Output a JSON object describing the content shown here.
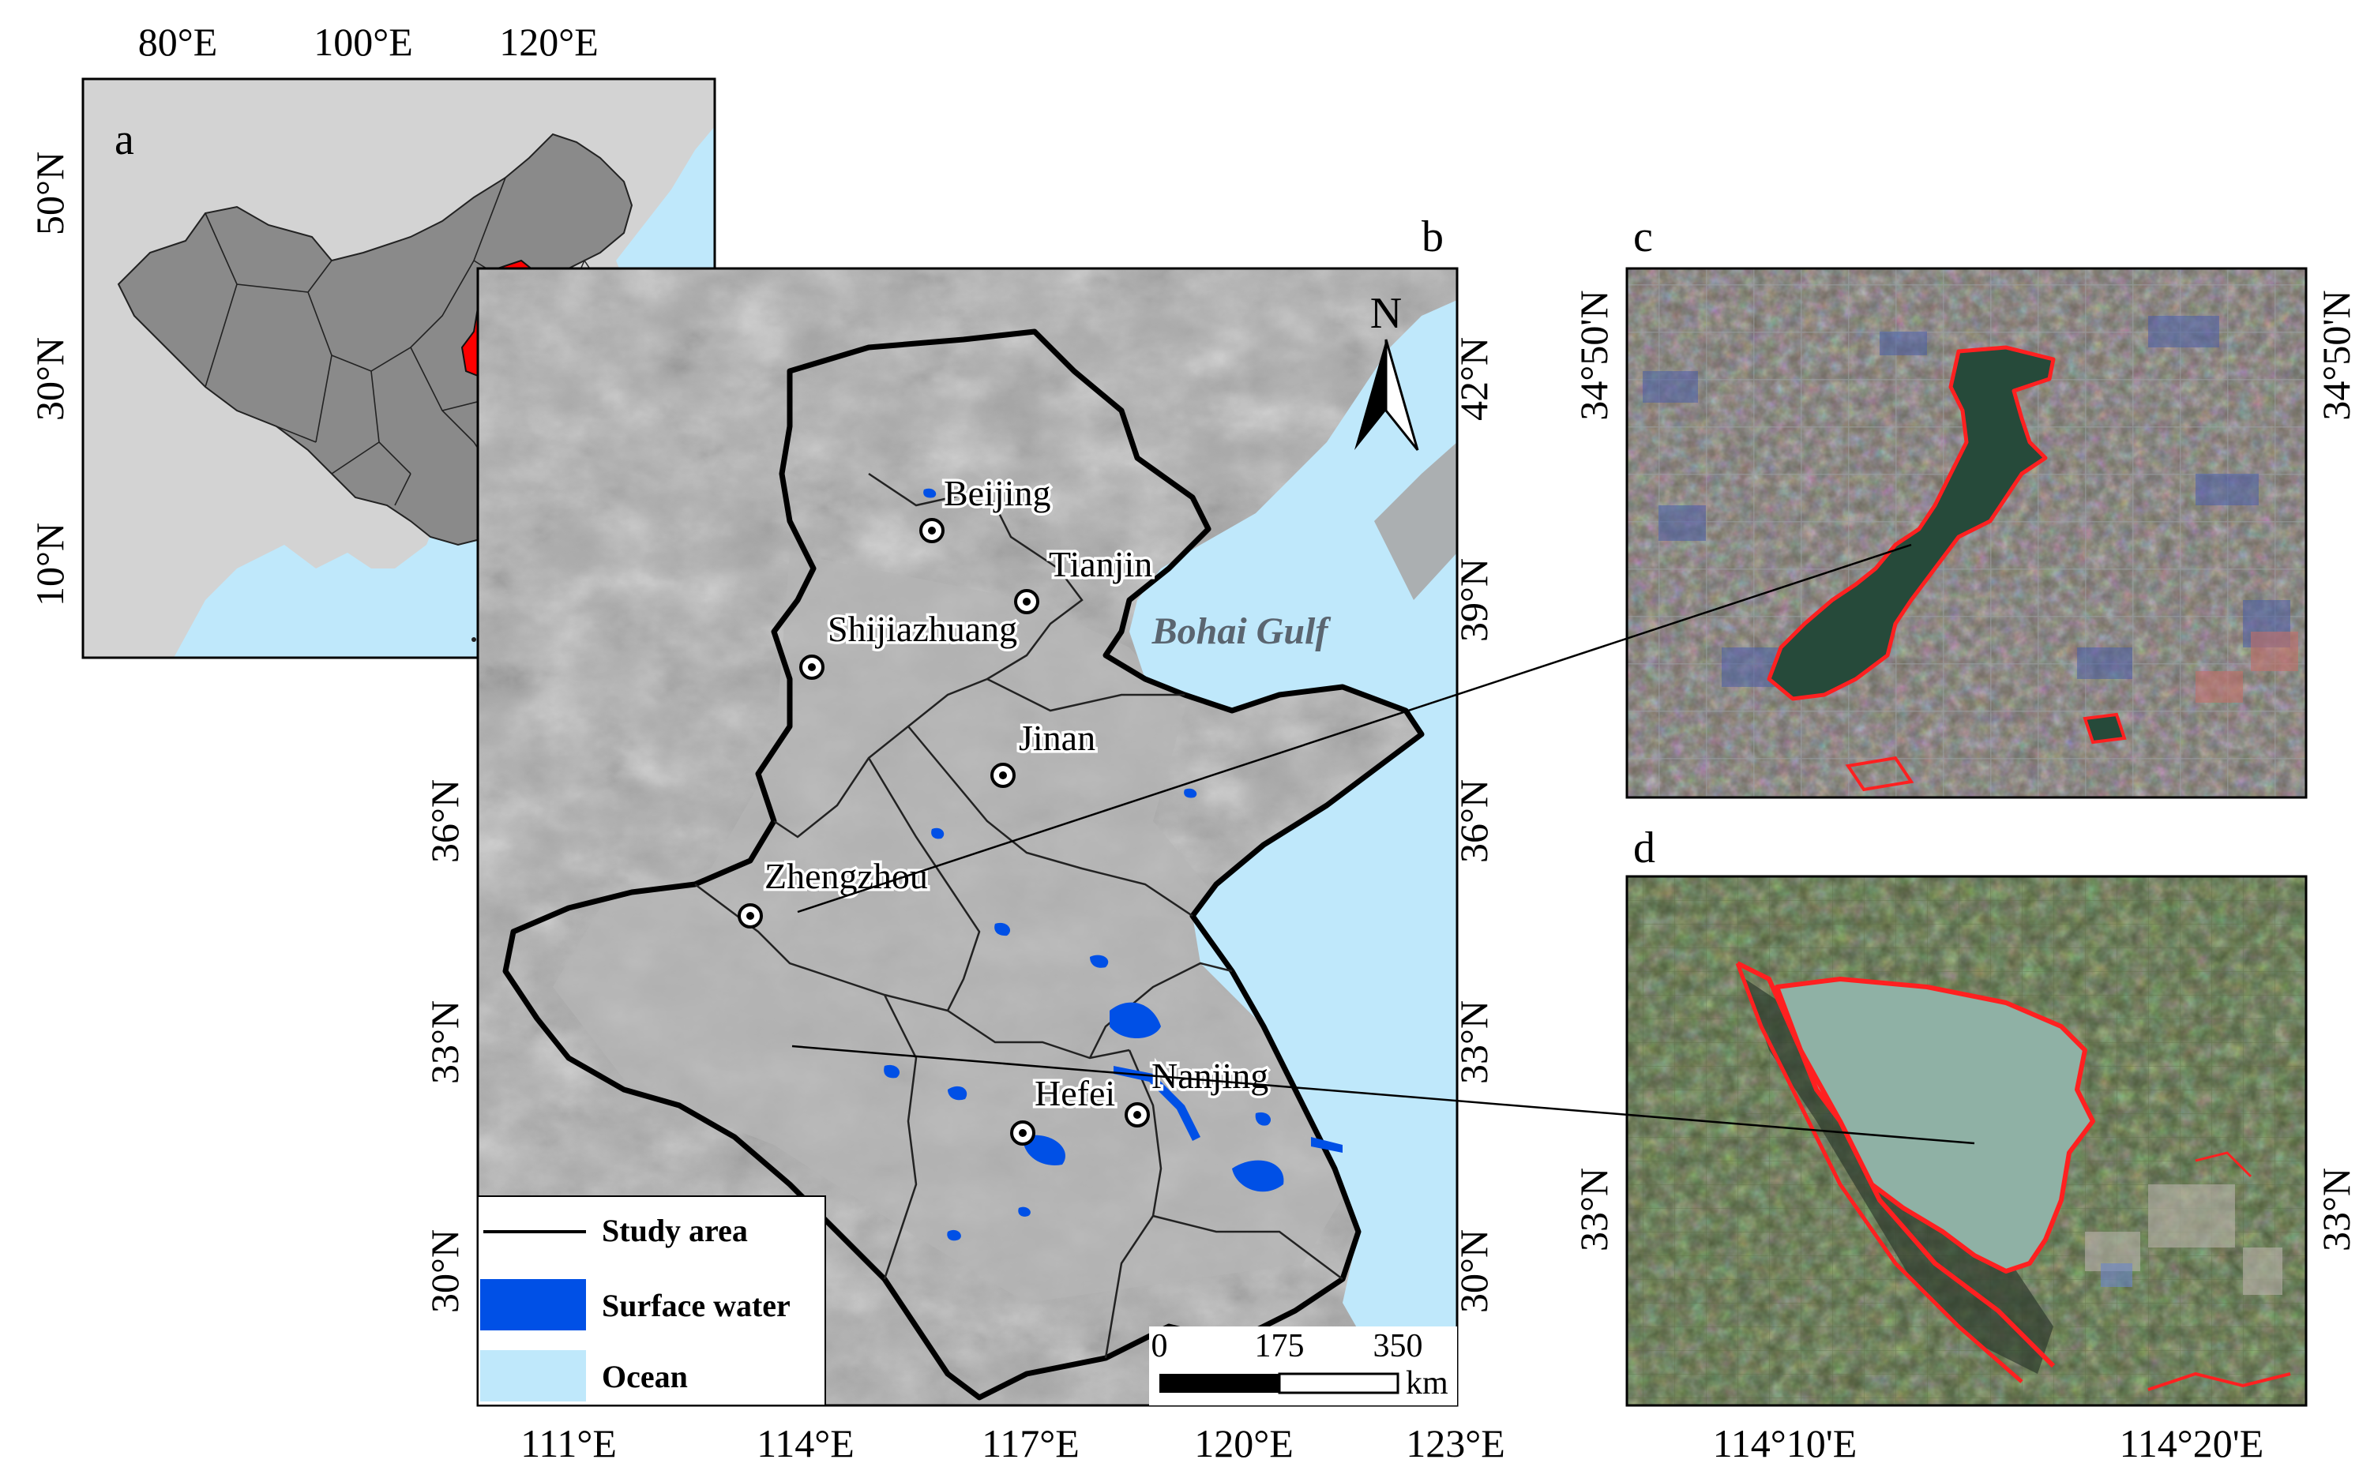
{
  "panels": {
    "a": "a",
    "b": "b",
    "c": "c",
    "d": "d"
  },
  "inset_a": {
    "top_ticks": [
      "80°E",
      "100°E",
      "120°E"
    ],
    "left_ticks": [
      "50°N",
      "30°N",
      "10°N"
    ]
  },
  "main_b": {
    "bottom_ticks": [
      "111°E",
      "114°E",
      "117°E",
      "120°E",
      "123°E"
    ],
    "left_ticks": [
      "36°N",
      "33°N",
      "30°N"
    ],
    "right_ticks": [
      "42°N",
      "39°N",
      "36°N",
      "33°N",
      "30°N"
    ],
    "north_label": "N",
    "gulf_label": "Bohai Gulf",
    "cities": [
      "Beijing",
      "Tianjin",
      "Shijiazhuang",
      "Jinan",
      "Zhengzhou",
      "Hefei",
      "Nanjing"
    ],
    "scale": {
      "labels": [
        "0",
        "175",
        "350"
      ],
      "unit": "km"
    },
    "legend": [
      {
        "label": "Study area",
        "kind": "line"
      },
      {
        "label": "Surface water",
        "kind": "water",
        "color": "#0050e6"
      },
      {
        "label": "Ocean",
        "kind": "ocean",
        "color": "#bfe8fb"
      }
    ]
  },
  "inset_c": {
    "left_tick": "34°50'N",
    "right_tick": "34°50'N"
  },
  "inset_d": {
    "left_tick": "33°N",
    "right_tick": "33°N",
    "bottom_ticks": [
      "114°10'E",
      "114°20'E"
    ]
  },
  "colors": {
    "study_area": "#ff0000",
    "province_fill": "#8c8c8c",
    "land_grey": "#d3d3d3",
    "ocean": "#bfe8fb",
    "surface_water": "#0050e6",
    "water_boundary": "#ff2020"
  }
}
